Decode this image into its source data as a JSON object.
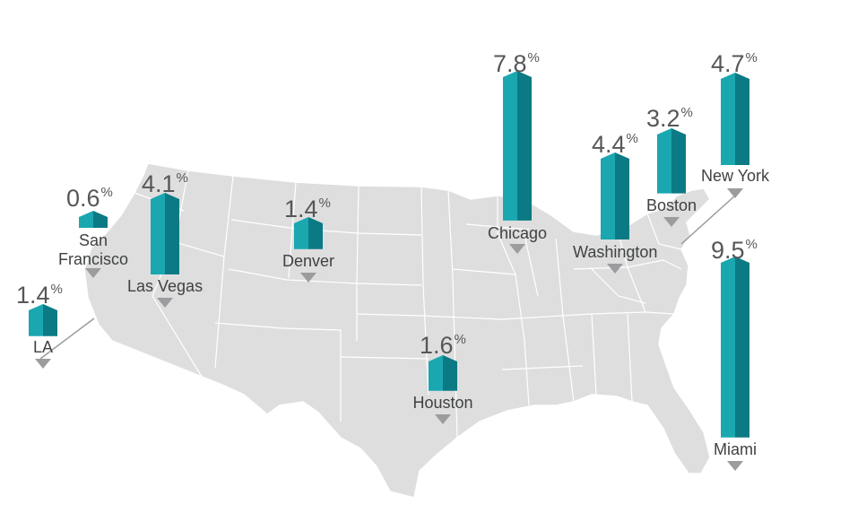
{
  "colors": {
    "land": "#dedede",
    "borders": "#ffffff",
    "bar_light": "#1aa7b0",
    "bar_dark": "#0b7a84",
    "pointer": "#9b9c9e",
    "value_text": "#555759",
    "label_text": "#3f4143"
  },
  "value_suffix": "%",
  "cities": [
    {
      "key": "la",
      "name": "LA",
      "value": "1.4",
      "level": 1.4
    },
    {
      "key": "san-francisco",
      "name": "San Francisco",
      "name_lines": [
        "San",
        "Francisco"
      ],
      "value": "0.6",
      "level": 0.6
    },
    {
      "key": "las-vegas",
      "name": "Las Vegas",
      "value": "4.1",
      "level": 4.1
    },
    {
      "key": "denver",
      "name": "Denver",
      "value": "1.4",
      "level": 1.4
    },
    {
      "key": "houston",
      "name": "Houston",
      "value": "1.6",
      "level": 1.6
    },
    {
      "key": "chicago",
      "name": "Chicago",
      "value": "7.8",
      "level": 7.8
    },
    {
      "key": "washington",
      "name": "Washington",
      "value": "4.4",
      "level": 4.4
    },
    {
      "key": "boston",
      "name": "Boston",
      "value": "3.2",
      "level": 3.2
    },
    {
      "key": "new-york",
      "name": "New York",
      "value": "4.7",
      "level": 4.7
    },
    {
      "key": "miami",
      "name": "Miami",
      "value": "9.5",
      "level": 9.5
    }
  ]
}
